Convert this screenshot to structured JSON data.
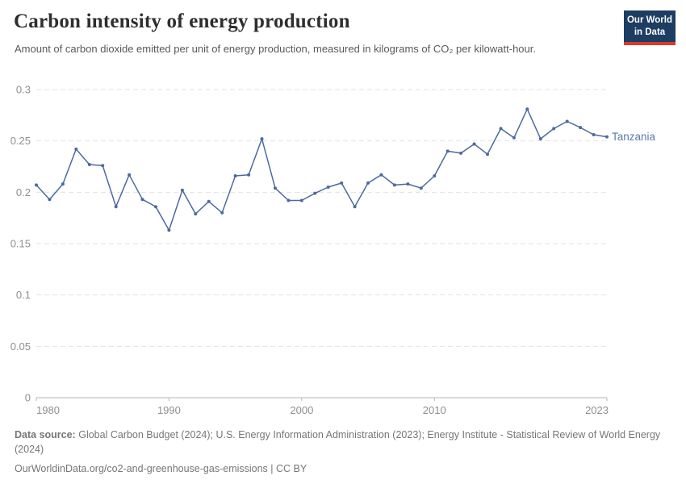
{
  "header": {
    "title": "Carbon intensity of energy production",
    "subtitle": "Amount of carbon dioxide emitted per unit of energy production, measured in kilograms of CO₂ per kilowatt-hour.",
    "logo": {
      "line1": "Our World",
      "line2": "in Data",
      "bg_color": "#1d3d63",
      "accent_color": "#d93a2d"
    }
  },
  "chart_data": {
    "type": "line",
    "title": "Carbon intensity of energy production",
    "ylabel": "",
    "xlabel": "",
    "unit": "kilograms of CO₂ per kilowatt-hour",
    "xlim": [
      1980,
      2023
    ],
    "ylim": [
      0,
      0.3
    ],
    "x_ticks": [
      1980,
      1990,
      2000,
      2010,
      2023
    ],
    "y_ticks": [
      0,
      0.05,
      0.1,
      0.15,
      0.2,
      0.25,
      0.3
    ],
    "grid": "horizontal-dashed",
    "legend_position": "end-of-line-label",
    "colors": {
      "line": "#4d6a9d",
      "entity_label": "#5d79a7",
      "grid": "#e2e2e2",
      "axis": "#b6b6b6",
      "tick_label": "#8f8f8f"
    },
    "series": [
      {
        "name": "Tanzania",
        "color": "#4d6a9d",
        "years": [
          1980,
          1981,
          1982,
          1983,
          1984,
          1985,
          1986,
          1987,
          1988,
          1989,
          1990,
          1991,
          1992,
          1993,
          1994,
          1995,
          1996,
          1997,
          1998,
          1999,
          2000,
          2001,
          2002,
          2003,
          2004,
          2005,
          2006,
          2007,
          2008,
          2009,
          2010,
          2011,
          2012,
          2013,
          2014,
          2015,
          2016,
          2017,
          2018,
          2019,
          2020,
          2021,
          2022,
          2023
        ],
        "values": [
          0.207,
          0.193,
          0.208,
          0.242,
          0.227,
          0.226,
          0.186,
          0.217,
          0.193,
          0.186,
          0.163,
          0.202,
          0.179,
          0.191,
          0.18,
          0.216,
          0.217,
          0.252,
          0.204,
          0.192,
          0.192,
          0.199,
          0.205,
          0.209,
          0.186,
          0.209,
          0.217,
          0.207,
          0.208,
          0.204,
          0.216,
          0.24,
          0.238,
          0.247,
          0.237,
          0.262,
          0.253,
          0.281,
          0.252,
          0.262,
          0.269,
          0.263,
          0.256,
          0.254
        ]
      }
    ]
  },
  "footer": {
    "datasource_label": "Data source:",
    "datasource_text": "Global Carbon Budget (2024); U.S. Energy Information Administration (2023); Energy Institute - Statistical Review of World Energy (2024)",
    "credit": "OurWorldinData.org/co2-and-greenhouse-gas-emissions | CC BY"
  }
}
